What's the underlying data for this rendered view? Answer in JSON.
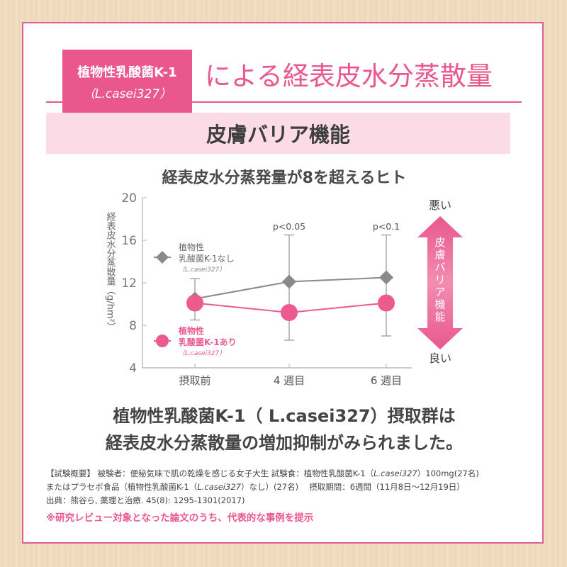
{
  "header": {
    "badge_line1": "植物性乳酸菌K-1",
    "badge_line2": "（L.casei327）",
    "title": "による経表皮水分蒸散量"
  },
  "band_title": "皮膚バリア機能",
  "chart_data": {
    "type": "line",
    "title": "経表皮水分蒸発量が8を超えるヒト",
    "ylabel": "経表皮水分蒸散量（g/hm²）",
    "ylim": [
      4,
      20
    ],
    "yticks": [
      4,
      8,
      12,
      16,
      20
    ],
    "categories": [
      "摂取前",
      "4 週目",
      "6 週目"
    ],
    "series": [
      {
        "name": "植物性乳酸菌K-1なし",
        "name_line1": "植物性",
        "name_line2": "乳酸菌K-1なし",
        "strain": "（L.casei327）",
        "color": "#8a8a8a",
        "marker": "diamond",
        "values": [
          10.5,
          12.1,
          12.5
        ],
        "err_upper": [
          12.4,
          16.5,
          16.5
        ],
        "err_lower": [
          8.5,
          6.6,
          7.0
        ]
      },
      {
        "name": "植物性乳酸菌K-1あり",
        "name_line1": "植物性",
        "name_line2": "乳酸菌K-1あり",
        "strain": "（L.casei327）",
        "color": "#ed5a8f",
        "marker": "circle",
        "values": [
          10.1,
          9.2,
          10.1
        ]
      }
    ],
    "annotations": [
      {
        "category": "4 週目",
        "text": "p<0.05"
      },
      {
        "category": "6 週目",
        "text": "p<0.1"
      }
    ],
    "scale": {
      "top": "悪い",
      "bottom": "良い",
      "label": [
        "皮",
        "膚",
        "バ",
        "リ",
        "ア",
        "機",
        "能"
      ]
    }
  },
  "conclusion": {
    "line1": "植物性乳酸菌K-1（ L.casei327）摂取群は",
    "line2": "経表皮水分蒸散量の増加抑制がみられました。"
  },
  "notes": {
    "line1_a": "【試験概要】 被験者：便秘気味で肌の乾燥を感じる女子大生 試験食：植物性乳酸菌K-1（",
    "line1_strain": "L.casei327",
    "line1_b": "）100mg(27名)",
    "line2_a": "またはプラセボ食品（植物性乳酸菌K-1（",
    "line2_strain": "L.casei327",
    "line2_b": "）なし）(27名)　 摂取期間：6週間（11月8日〜12月19日）",
    "line3": "出典：熊谷ら, 薬理と治療. 45(8): 1295-1301(2017)",
    "footnote": "※研究レビュー対象となった論文のうち、代表的な事例を提示"
  }
}
